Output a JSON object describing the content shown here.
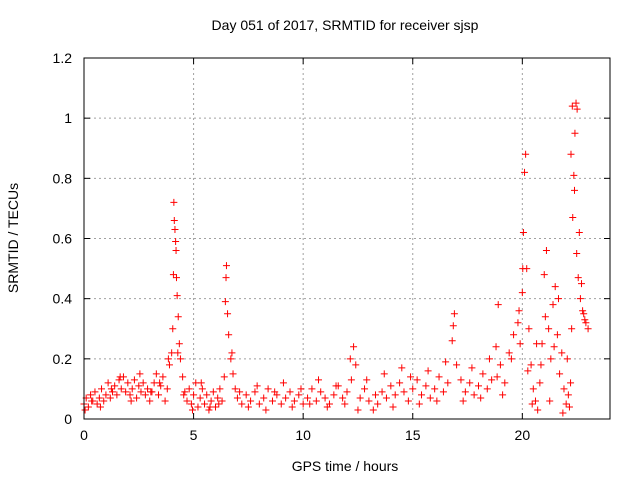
{
  "chart_data": {
    "type": "scatter",
    "title": "Day 051 of 2017, SRMTID for receiver sjsp",
    "xlabel": "GPS time / hours",
    "ylabel": "SRMTID / TECUs",
    "xlim": [
      0,
      24
    ],
    "ylim": [
      0,
      1.2
    ],
    "xticks": [
      0,
      5,
      10,
      15,
      20
    ],
    "xtick_labels": [
      "0",
      "5",
      "10",
      "15",
      "20"
    ],
    "yticks": [
      0,
      0.2,
      0.4,
      0.6,
      0.8,
      1,
      1.2
    ],
    "ytick_labels": [
      "0",
      "0.2",
      "0.4",
      "0.6",
      "0.8",
      "1",
      "1.2"
    ],
    "grid": true,
    "marker": "+",
    "series": [
      {
        "name": "SRMTID",
        "color": "#ff0000",
        "x": [
          0.0,
          0.1,
          0.2,
          0.3,
          0.4,
          0.5,
          0.6,
          0.7,
          0.8,
          0.9,
          1.0,
          1.1,
          1.2,
          1.3,
          1.4,
          1.5,
          1.6,
          1.7,
          1.8,
          1.9,
          2.0,
          2.1,
          2.2,
          2.3,
          2.4,
          2.5,
          2.6,
          2.7,
          2.8,
          2.9,
          3.0,
          3.1,
          3.2,
          3.3,
          3.4,
          3.5,
          3.6,
          3.7,
          3.8,
          3.9,
          4.0,
          4.05,
          4.1,
          4.12,
          4.15,
          4.18,
          4.2,
          4.22,
          4.25,
          4.3,
          4.35,
          4.4,
          4.5,
          4.6,
          4.7,
          4.8,
          4.9,
          5.0,
          5.1,
          5.2,
          5.3,
          5.4,
          5.5,
          5.6,
          5.7,
          5.8,
          5.9,
          6.0,
          6.1,
          6.2,
          6.3,
          6.4,
          6.45,
          6.5,
          6.55,
          6.6,
          6.7,
          6.8,
          6.9,
          7.0,
          7.2,
          7.4,
          7.6,
          7.8,
          8.0,
          8.2,
          8.4,
          8.6,
          8.8,
          9.0,
          9.2,
          9.4,
          9.6,
          9.8,
          10.0,
          10.2,
          10.4,
          10.6,
          10.8,
          11.0,
          11.2,
          11.4,
          11.6,
          11.8,
          12.0,
          12.2,
          12.3,
          12.4,
          12.6,
          12.8,
          13.0,
          13.2,
          13.4,
          13.6,
          13.8,
          14.0,
          14.2,
          14.4,
          14.6,
          14.8,
          15.0,
          15.2,
          15.4,
          15.6,
          15.8,
          16.0,
          16.2,
          16.4,
          16.6,
          16.8,
          16.9,
          17.0,
          17.2,
          17.4,
          17.6,
          17.8,
          18.0,
          18.2,
          18.4,
          18.6,
          18.8,
          18.9,
          19.0,
          19.2,
          19.4,
          19.6,
          19.8,
          19.9,
          20.0,
          20.05,
          20.1,
          20.15,
          20.2,
          20.3,
          20.4,
          20.5,
          20.6,
          20.7,
          20.8,
          20.9,
          21.0,
          21.1,
          21.2,
          21.3,
          21.4,
          21.5,
          21.6,
          21.7,
          21.8,
          21.9,
          22.0,
          22.1,
          22.15,
          22.2,
          22.25,
          22.3,
          22.35,
          22.4,
          22.45,
          22.5,
          22.6,
          22.7,
          22.8,
          22.9,
          23.0,
          0.05,
          0.35,
          0.75,
          1.25,
          1.65,
          2.15,
          2.55,
          3.05,
          3.45,
          3.85,
          4.08,
          4.28,
          4.55,
          4.95,
          5.35,
          5.75,
          6.15,
          6.48,
          6.75,
          7.1,
          7.5,
          7.9,
          8.3,
          8.7,
          9.1,
          9.5,
          9.9,
          10.3,
          10.7,
          11.1,
          11.5,
          11.9,
          12.15,
          12.5,
          12.9,
          13.3,
          13.7,
          14.1,
          14.5,
          14.9,
          15.3,
          15.7,
          16.1,
          16.5,
          16.85,
          17.3,
          17.7,
          18.1,
          18.5,
          18.85,
          19.1,
          19.5,
          19.85,
          20.02,
          20.25,
          20.45,
          20.65,
          20.85,
          21.05,
          21.25,
          21.45,
          21.65,
          21.85,
          22.05,
          22.22,
          22.28,
          22.38,
          22.48,
          22.55,
          22.65,
          22.75,
          22.85
        ],
        "y": [
          0.05,
          0.07,
          0.04,
          0.08,
          0.06,
          0.09,
          0.05,
          0.07,
          0.1,
          0.06,
          0.08,
          0.12,
          0.07,
          0.09,
          0.11,
          0.08,
          0.13,
          0.1,
          0.14,
          0.09,
          0.12,
          0.08,
          0.1,
          0.13,
          0.07,
          0.11,
          0.09,
          0.12,
          0.08,
          0.1,
          0.06,
          0.09,
          0.12,
          0.15,
          0.08,
          0.11,
          0.14,
          0.06,
          0.1,
          0.18,
          0.22,
          0.3,
          0.72,
          0.66,
          0.63,
          0.59,
          0.56,
          0.47,
          0.41,
          0.34,
          0.25,
          0.2,
          0.14,
          0.09,
          0.06,
          0.1,
          0.05,
          0.08,
          0.12,
          0.04,
          0.07,
          0.1,
          0.05,
          0.08,
          0.03,
          0.06,
          0.09,
          0.04,
          0.07,
          0.1,
          0.06,
          0.14,
          0.39,
          0.51,
          0.35,
          0.28,
          0.2,
          0.15,
          0.1,
          0.07,
          0.05,
          0.08,
          0.06,
          0.09,
          0.05,
          0.07,
          0.1,
          0.06,
          0.08,
          0.05,
          0.07,
          0.09,
          0.06,
          0.08,
          0.05,
          0.07,
          0.1,
          0.06,
          0.09,
          0.07,
          0.05,
          0.08,
          0.11,
          0.07,
          0.09,
          0.13,
          0.24,
          0.18,
          0.07,
          0.1,
          0.06,
          0.03,
          0.05,
          0.09,
          0.07,
          0.11,
          0.08,
          0.12,
          0.09,
          0.06,
          0.1,
          0.13,
          0.08,
          0.11,
          0.07,
          0.1,
          0.14,
          0.09,
          0.12,
          0.26,
          0.35,
          0.18,
          0.13,
          0.09,
          0.12,
          0.08,
          0.11,
          0.15,
          0.1,
          0.13,
          0.24,
          0.38,
          0.18,
          0.12,
          0.22,
          0.28,
          0.32,
          0.25,
          0.42,
          0.62,
          0.82,
          0.88,
          0.5,
          0.3,
          0.18,
          0.1,
          0.06,
          0.03,
          0.12,
          0.25,
          0.48,
          0.56,
          0.3,
          0.2,
          0.38,
          0.44,
          0.28,
          0.15,
          0.22,
          0.1,
          0.05,
          0.08,
          0.04,
          0.12,
          0.3,
          0.67,
          0.81,
          0.95,
          1.05,
          1.03,
          0.62,
          0.45,
          0.35,
          0.32,
          0.3,
          0.03,
          0.06,
          0.04,
          0.1,
          0.14,
          0.06,
          0.15,
          0.09,
          0.12,
          0.2,
          0.48,
          0.22,
          0.08,
          0.03,
          0.12,
          0.04,
          0.05,
          0.47,
          0.22,
          0.09,
          0.04,
          0.11,
          0.03,
          0.09,
          0.12,
          0.04,
          0.1,
          0.05,
          0.13,
          0.04,
          0.11,
          0.05,
          0.2,
          0.03,
          0.13,
          0.08,
          0.15,
          0.04,
          0.17,
          0.14,
          0.05,
          0.16,
          0.06,
          0.19,
          0.31,
          0.06,
          0.17,
          0.07,
          0.2,
          0.14,
          0.08,
          0.2,
          0.36,
          0.5,
          0.16,
          0.05,
          0.25,
          0.18,
          0.34,
          0.06,
          0.24,
          0.4,
          0.02,
          0.2,
          0.88,
          1.04,
          0.76,
          0.55,
          0.47,
          0.4,
          0.36,
          0.33
        ]
      }
    ]
  }
}
